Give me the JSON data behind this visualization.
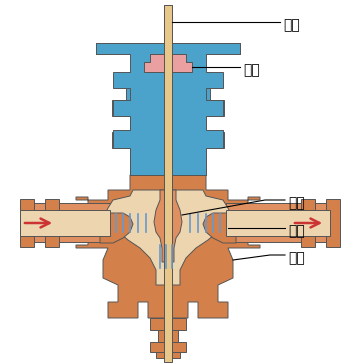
{
  "labels": {
    "stem": "阀杆",
    "packing": "填料",
    "plug": "阀芯",
    "seat": "阀座",
    "body": "阀体"
  },
  "colors": {
    "blue": "#4BA3CC",
    "orange_body": "#D4804A",
    "orange_light": "#E09060",
    "beige": "#EDD5B0",
    "pink": "#EAA0A0",
    "stem_color": "#E8C88A",
    "packing_dot": "#E8A830",
    "blue_tick": "#6699CC",
    "arrow_color": "#CC3333",
    "outline": "#555555",
    "background": "#FFFFFF"
  },
  "figsize": [
    3.61,
    3.63
  ],
  "dpi": 100
}
